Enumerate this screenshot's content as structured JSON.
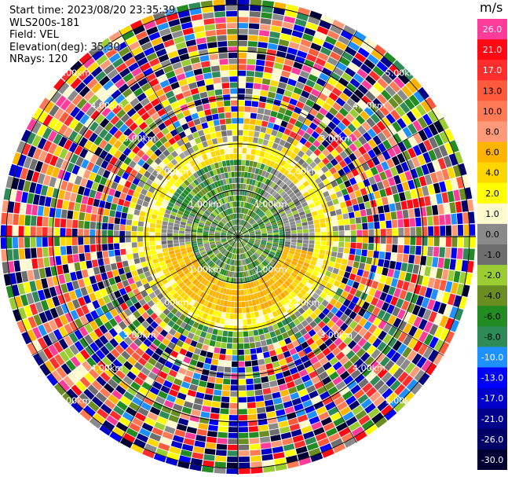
{
  "info": {
    "start_time": "Start time: 2023/08/20 23:35:39",
    "instrument": "WLS200s-181",
    "field": "Field: VEL",
    "elevation": "Elevation(deg): 35.30",
    "nrays": "NRays: 120"
  },
  "rings": [
    {
      "label": "1.00km",
      "km": 1
    },
    {
      "label": "2.00km",
      "km": 2
    },
    {
      "label": "3.00km",
      "km": 3
    },
    {
      "label": "4.00km",
      "km": 4
    },
    {
      "label": "5.00km",
      "km": 5
    }
  ],
  "colorbar": {
    "unit": "m/s",
    "levels": [
      {
        "label": "26.0",
        "color": "#ff3c9a"
      },
      {
        "label": "21.0",
        "color": "#ff0a14"
      },
      {
        "label": "17.0",
        "color": "#ff2d2d"
      },
      {
        "label": "13.0",
        "color": "#ff5a3c"
      },
      {
        "label": "10.0",
        "color": "#ff7a55"
      },
      {
        "label": "8.0",
        "color": "#ff9a78"
      },
      {
        "label": "6.0",
        "color": "#ffb400"
      },
      {
        "label": "4.0",
        "color": "#ffd700"
      },
      {
        "label": "2.0",
        "color": "#ffff00"
      },
      {
        "label": "1.0",
        "color": "#fffacd"
      },
      {
        "label": "0.0",
        "color": "#8a8a8a"
      },
      {
        "label": "-1.0",
        "color": "#6e6e6e"
      },
      {
        "label": "-2.0",
        "color": "#9acd32"
      },
      {
        "label": "-4.0",
        "color": "#6b8e23"
      },
      {
        "label": "-6.0",
        "color": "#228b22"
      },
      {
        "label": "-8.0",
        "color": "#2e8b57"
      },
      {
        "label": "-10.0",
        "color": "#1e90ff"
      },
      {
        "label": "-13.0",
        "color": "#0000ff"
      },
      {
        "label": "-17.0",
        "color": "#0000cd"
      },
      {
        "label": "-21.0",
        "color": "#00008b"
      },
      {
        "label": "-26.0",
        "color": "#000066"
      },
      {
        "label": "-30.0",
        "color": "#000033"
      }
    ]
  }
}
